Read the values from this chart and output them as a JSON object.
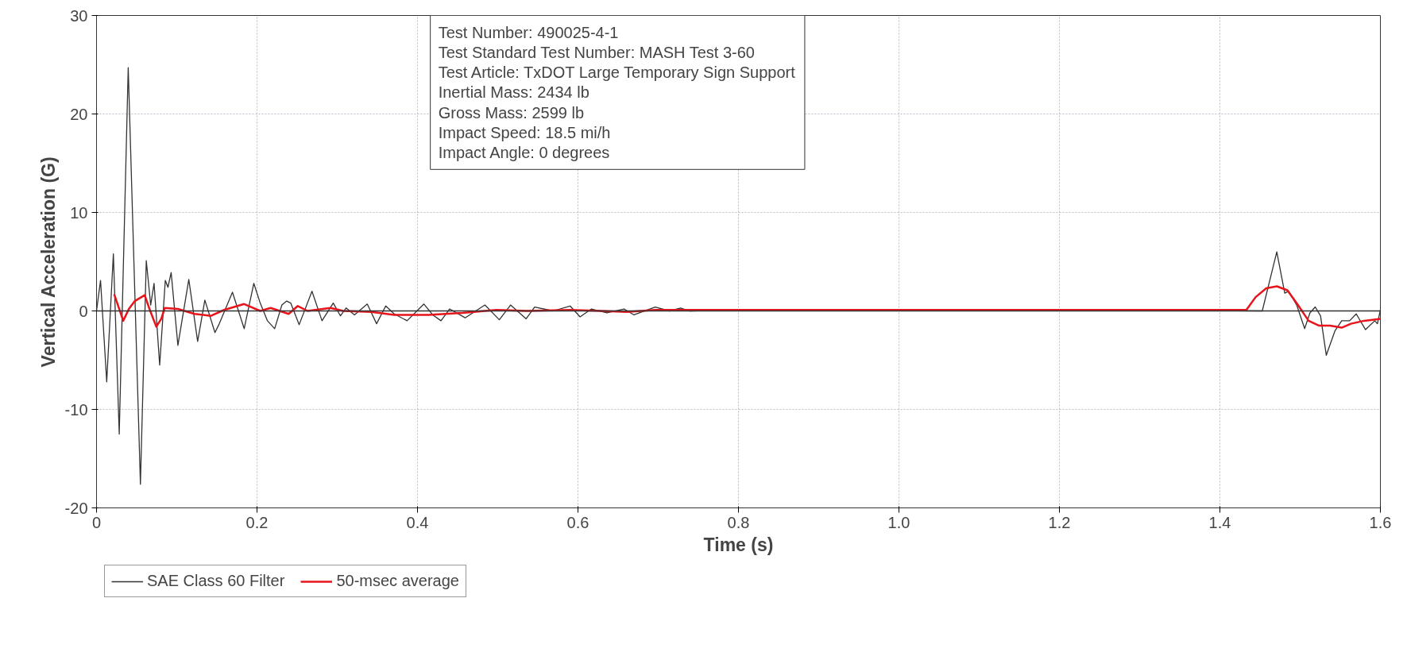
{
  "chart_data": {
    "type": "line",
    "xlabel": "Time (s)",
    "ylabel": "Vertical Acceleration (G)",
    "annotations": [
      "Test Number: 490025-4-1",
      "Test Standard Test Number:  MASH Test 3-60",
      "Test Article: TxDOT Large Temporary Sign Support",
      "Inertial Mass: 2434 lb",
      "Gross Mass: 2599 lb",
      "Impact Speed: 18.5 mi/h",
      "Impact Angle: 0 degrees"
    ],
    "xlim": [
      0,
      1.6
    ],
    "ylim": [
      -20,
      30
    ],
    "xticks": [
      0,
      0.2,
      0.4,
      0.6,
      0.8,
      {
        "value": 1.0,
        "label": "1.0"
      },
      1.2,
      1.4,
      1.6
    ],
    "yticks": [
      -20,
      -10,
      0,
      10,
      20,
      30
    ],
    "grid": true,
    "legend": "bottom left",
    "line_style": "solid",
    "marker": "none",
    "ref_lines": [
      {
        "axis": "y",
        "value": 0,
        "label": null,
        "color": "#333333"
      }
    ],
    "series": [
      {
        "name": "SAE Class 60 Filter",
        "color": "#333333",
        "x": [
          0,
          0.005,
          0.0127,
          0.021,
          0.0283,
          0.0395,
          0.0547,
          0.062,
          0.0675,
          0.0717,
          0.0787,
          0.0857,
          0.089,
          0.093,
          0.1014,
          0.115,
          0.126,
          0.135,
          0.1476,
          0.153,
          0.1694,
          0.184,
          0.196,
          0.204,
          0.213,
          0.222,
          0.231,
          0.237,
          0.242,
          0.2525,
          0.2685,
          0.281,
          0.295,
          0.304,
          0.311,
          0.3215,
          0.3374,
          0.349,
          0.3604,
          0.371,
          0.387,
          0.408,
          0.419,
          0.4293,
          0.44,
          0.4594,
          0.484,
          0.502,
          0.516,
          0.5354,
          0.546,
          0.569,
          0.5902,
          0.6026,
          0.6168,
          0.636,
          0.6574,
          0.6698,
          0.6963,
          0.714,
          0.728,
          0.739,
          0.791,
          1.0,
          1.2,
          1.4528,
          1.4709,
          1.4808,
          1.4858,
          1.4957,
          1.5056,
          1.5122,
          1.5188,
          1.5254,
          1.5326,
          1.5435,
          1.5518,
          1.5617,
          1.5699,
          1.5815,
          1.593,
          1.5963,
          1.6
        ],
        "values": [
          0,
          3.1,
          -7.2,
          5.8,
          -12.5,
          24.7,
          -17.6,
          5.1,
          0.6,
          2.8,
          -5.5,
          3.1,
          2.4,
          3.9,
          -3.5,
          3.2,
          -3.1,
          1.1,
          -2.2,
          -1.3,
          1.9,
          -1.8,
          2.8,
          0.8,
          -1.0,
          -1.8,
          0.6,
          1.0,
          0.8,
          -1.4,
          2.0,
          -1.0,
          0.8,
          -0.5,
          0.3,
          -0.4,
          0.7,
          -1.3,
          0.5,
          -0.3,
          -1.0,
          0.7,
          -0.4,
          -1.0,
          0.2,
          -0.7,
          0.6,
          -0.9,
          0.6,
          -0.8,
          0.4,
          0.0,
          0.5,
          -0.6,
          0.2,
          -0.2,
          0.2,
          -0.4,
          0.4,
          0,
          0.3,
          0,
          0.1,
          0.1,
          0.1,
          0,
          6.0,
          1.8,
          2.0,
          0.6,
          -1.8,
          -0.2,
          0.4,
          -0.5,
          -4.5,
          -2.0,
          -1.0,
          -1.0,
          -0.3,
          -1.9,
          -1.0,
          -1.3,
          0.1
        ]
      },
      {
        "name": "50-msec average",
        "color": "#e8141c",
        "x": [
          0.022,
          0.0333,
          0.0403,
          0.0477,
          0.06,
          0.066,
          0.0745,
          0.0807,
          0.085,
          0.1014,
          0.122,
          0.1426,
          0.159,
          0.184,
          0.204,
          0.217,
          0.2395,
          0.2508,
          0.263,
          0.2915,
          0.3074,
          0.3427,
          0.371,
          0.4134,
          0.456,
          0.4983,
          0.537,
          0.59,
          0.661,
          0.696,
          0.791,
          1.0,
          1.2,
          1.433,
          1.4445,
          1.4577,
          1.471,
          1.4841,
          1.4973,
          1.5105,
          1.5237,
          1.537,
          1.5518,
          1.5633,
          1.5798,
          1.6
        ],
        "values": [
          1.7,
          -1.0,
          0.2,
          1.0,
          1.6,
          0.2,
          -1.6,
          -0.8,
          0.3,
          0.2,
          -0.3,
          -0.5,
          0.1,
          0.7,
          0.0,
          0.3,
          -0.3,
          0.5,
          0,
          0.3,
          0,
          -0.1,
          -0.4,
          -0.4,
          -0.2,
          0.1,
          0,
          0.1,
          -0.1,
          0.1,
          0.1,
          0.1,
          0.1,
          0.1,
          1.4,
          2.3,
          2.5,
          2.1,
          0.6,
          -1.0,
          -1.5,
          -1.5,
          -1.7,
          -1.3,
          -1.0,
          -0.8
        ]
      }
    ]
  }
}
